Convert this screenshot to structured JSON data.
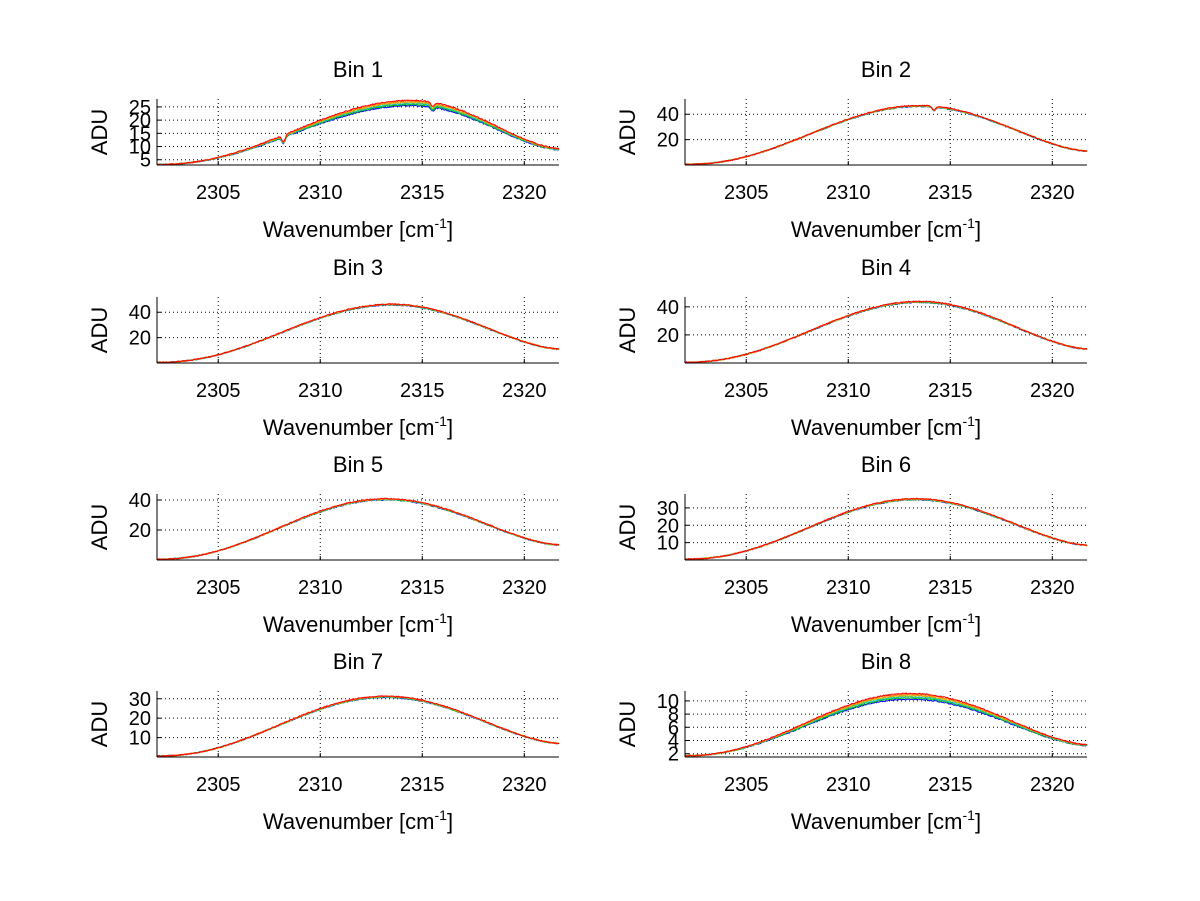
{
  "figure_title": "",
  "chart_data": [
    {
      "type": "line",
      "title": "Bin 1",
      "xlabel": "Wavenumber [cm",
      "xlabel_sup": "-1",
      "xlabel_end": "]",
      "ylabel": "ADU",
      "xlim": [
        2302,
        2321.7
      ],
      "ylim": [
        3,
        28
      ],
      "xticks": [
        2305,
        2310,
        2315,
        2320
      ],
      "yticks": [
        5,
        10,
        15,
        20,
        25
      ],
      "peak_x": 2314.5,
      "start_y": 3.2,
      "peak_y": 26.5,
      "end_y": 9.0,
      "dips": [
        [
          2308.2,
          -2.5
        ],
        [
          2315.5,
          -1.5
        ]
      ],
      "series_colors": [
        "#0000ff",
        "#00bf00",
        "#00bfbf",
        "#bfbf00",
        "#ff8000",
        "#ff0000"
      ],
      "spread": 0.8,
      "grid": true
    },
    {
      "type": "line",
      "title": "Bin 2",
      "xlabel": "Wavenumber [cm",
      "xlabel_sup": "-1",
      "xlabel_end": "]",
      "ylabel": "ADU",
      "xlim": [
        2302,
        2321.7
      ],
      "ylim": [
        0,
        52
      ],
      "xticks": [
        2305,
        2310,
        2315,
        2320
      ],
      "yticks": [
        20,
        40
      ],
      "peak_x": 2313.5,
      "start_y": 0.5,
      "peak_y": 46.5,
      "end_y": 11,
      "dips": [
        [
          2314.2,
          -3
        ]
      ],
      "series_colors": [
        "#0000ff",
        "#00bf00",
        "#00bfbf",
        "#bfbf00",
        "#ff8000",
        "#ff0000"
      ],
      "spread": 0.3,
      "grid": true
    },
    {
      "type": "line",
      "title": "Bin 3",
      "xlabel": "Wavenumber [cm",
      "xlabel_sup": "-1",
      "xlabel_end": "]",
      "ylabel": "ADU",
      "xlim": [
        2302,
        2321.7
      ],
      "ylim": [
        0,
        52
      ],
      "xticks": [
        2305,
        2310,
        2315,
        2320
      ],
      "yticks": [
        20,
        40
      ],
      "peak_x": 2313.5,
      "start_y": 0.5,
      "peak_y": 46,
      "end_y": 11,
      "dips": [],
      "series_colors": [
        "#0000ff",
        "#00bf00",
        "#00bfbf",
        "#bfbf00",
        "#ff8000",
        "#ff0000"
      ],
      "spread": 0.3,
      "grid": true
    },
    {
      "type": "line",
      "title": "Bin 4",
      "xlabel": "Wavenumber [cm",
      "xlabel_sup": "-1",
      "xlabel_end": "]",
      "ylabel": "ADU",
      "xlim": [
        2302,
        2321.7
      ],
      "ylim": [
        0,
        47
      ],
      "xticks": [
        2305,
        2310,
        2315,
        2320
      ],
      "yticks": [
        20,
        40
      ],
      "peak_x": 2313.5,
      "start_y": 0.5,
      "peak_y": 43.5,
      "end_y": 10,
      "dips": [],
      "series_colors": [
        "#0000ff",
        "#00bf00",
        "#00bfbf",
        "#bfbf00",
        "#ff8000",
        "#ff0000"
      ],
      "spread": 0.3,
      "grid": true
    },
    {
      "type": "line",
      "title": "Bin 5",
      "xlabel": "Wavenumber [cm",
      "xlabel_sup": "-1",
      "xlabel_end": "]",
      "ylabel": "ADU",
      "xlim": [
        2302,
        2321.7
      ],
      "ylim": [
        0,
        44
      ],
      "xticks": [
        2305,
        2310,
        2315,
        2320
      ],
      "yticks": [
        20,
        40
      ],
      "peak_x": 2313.2,
      "start_y": 0.5,
      "peak_y": 40.5,
      "end_y": 10,
      "dips": [],
      "series_colors": [
        "#0000ff",
        "#00bf00",
        "#00bfbf",
        "#bfbf00",
        "#ff8000",
        "#ff0000"
      ],
      "spread": 0.3,
      "grid": true
    },
    {
      "type": "line",
      "title": "Bin 6",
      "xlabel": "Wavenumber [cm",
      "xlabel_sup": "-1",
      "xlabel_end": "]",
      "ylabel": "ADU",
      "xlim": [
        2302,
        2321.7
      ],
      "ylim": [
        0,
        38
      ],
      "xticks": [
        2305,
        2310,
        2315,
        2320
      ],
      "yticks": [
        10,
        20,
        30
      ],
      "peak_x": 2313.3,
      "start_y": 0.5,
      "peak_y": 35,
      "end_y": 8.5,
      "dips": [],
      "series_colors": [
        "#0000ff",
        "#00bf00",
        "#00bfbf",
        "#bfbf00",
        "#ff8000",
        "#ff0000"
      ],
      "spread": 0.25,
      "grid": true
    },
    {
      "type": "line",
      "title": "Bin 7",
      "xlabel": "Wavenumber [cm",
      "xlabel_sup": "-1",
      "xlabel_end": "]",
      "ylabel": "ADU",
      "xlim": [
        2302,
        2321.7
      ],
      "ylim": [
        0,
        34
      ],
      "xticks": [
        2305,
        2310,
        2315,
        2320
      ],
      "yticks": [
        10,
        20,
        30
      ],
      "peak_x": 2313.2,
      "start_y": 0.5,
      "peak_y": 31,
      "end_y": 7,
      "dips": [],
      "series_colors": [
        "#0000ff",
        "#00bf00",
        "#00bfbf",
        "#bfbf00",
        "#ff8000",
        "#ff0000"
      ],
      "spread": 0.25,
      "grid": true
    },
    {
      "type": "line",
      "title": "Bin 8",
      "xlabel": "Wavenumber [cm",
      "xlabel_sup": "-1",
      "xlabel_end": "]",
      "ylabel": "ADU",
      "xlim": [
        2302,
        2321.7
      ],
      "ylim": [
        1.5,
        11.5
      ],
      "xticks": [
        2305,
        2310,
        2315,
        2320
      ],
      "yticks": [
        2,
        4,
        6,
        8,
        10
      ],
      "peak_x": 2313,
      "start_y": 1.7,
      "peak_y": 10.7,
      "end_y": 3.3,
      "dips": [],
      "series_colors": [
        "#0000ff",
        "#00bf00",
        "#00bfbf",
        "#bfbf00",
        "#ff8000",
        "#ff0000"
      ],
      "spread": 0.35,
      "grid": true
    }
  ]
}
